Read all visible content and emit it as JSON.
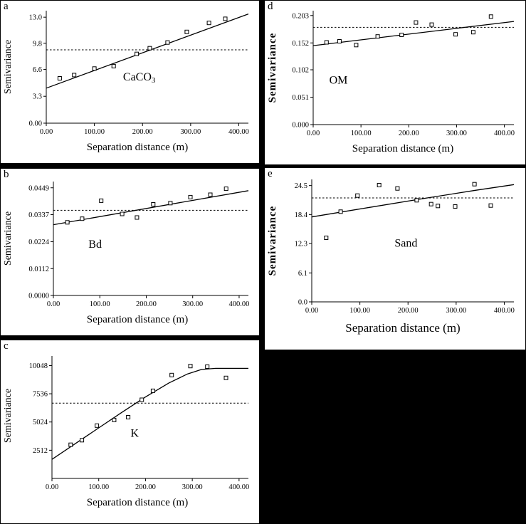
{
  "colors": {
    "background": "#000000",
    "panel": "#ffffff",
    "ink": "#000000"
  },
  "chart_data": [
    {
      "id": "a",
      "type": "scatter",
      "letter": "a",
      "series_label": "CaCO3",
      "label_main": "CaCO",
      "label_sub": "3",
      "xlabel": "Separation distance (m)",
      "ylabel": "Semivariance",
      "xlim": [
        0,
        420
      ],
      "ylim": [
        0,
        13.8
      ],
      "x_ticks": {
        "values": [
          0,
          100,
          200,
          300,
          400
        ],
        "labels": [
          "0.00",
          "100.00",
          "200.00",
          "300.00",
          "400.00"
        ]
      },
      "y_ticks": {
        "values": [
          0,
          3.3,
          6.6,
          9.8,
          13.0
        ],
        "labels": [
          "0.00",
          "3.3",
          "6.6",
          "9.8",
          "13.0"
        ]
      },
      "points": [
        [
          28,
          5.5
        ],
        [
          58,
          5.9
        ],
        [
          100,
          6.7
        ],
        [
          140,
          7.0
        ],
        [
          188,
          8.5
        ],
        [
          215,
          9.2
        ],
        [
          252,
          9.9
        ],
        [
          292,
          11.2
        ],
        [
          338,
          12.3
        ],
        [
          372,
          12.8
        ]
      ],
      "model_line": [
        [
          0,
          4.3
        ],
        [
          420,
          13.4
        ]
      ],
      "sill": 9.0,
      "label_pos": [
        0.38,
        0.62
      ],
      "legend": "none",
      "grid": false
    },
    {
      "id": "b",
      "type": "scatter",
      "letter": "b",
      "series_label": "Bd",
      "label_main": "Bd",
      "label_sub": "",
      "xlabel": "Separation distance (m)",
      "ylabel": "Semivariance",
      "xlim": [
        0,
        420
      ],
      "ylim": [
        0,
        0.0475
      ],
      "x_ticks": {
        "values": [
          0,
          100,
          200,
          300,
          400
        ],
        "labels": [
          "0.00",
          "100.00",
          "200.00",
          "300.00",
          "400.00"
        ]
      },
      "y_ticks": {
        "values": [
          0,
          0.0112,
          0.0224,
          0.0337,
          0.0449
        ],
        "labels": [
          "0.0000",
          "0.0112",
          "0.0224",
          "0.0337",
          "0.0449"
        ]
      },
      "points": [
        [
          30,
          0.0305
        ],
        [
          62,
          0.032
        ],
        [
          103,
          0.0395
        ],
        [
          148,
          0.034
        ],
        [
          180,
          0.0325
        ],
        [
          215,
          0.038
        ],
        [
          252,
          0.0385
        ],
        [
          295,
          0.041
        ],
        [
          338,
          0.042
        ],
        [
          372,
          0.0445
        ]
      ],
      "model_line": [
        [
          0,
          0.0295
        ],
        [
          420,
          0.0437
        ]
      ],
      "sill": 0.0355,
      "label_pos": [
        0.18,
        0.58
      ],
      "legend": "none",
      "grid": false
    },
    {
      "id": "c",
      "type": "scatter",
      "letter": "c",
      "series_label": "K",
      "label_main": "K",
      "label_sub": "",
      "xlabel": "Separation distance (m)",
      "ylabel": "Semivariance",
      "xlim": [
        0,
        420
      ],
      "ylim": [
        0,
        10900
      ],
      "x_ticks": {
        "values": [
          0,
          100,
          200,
          300,
          400
        ],
        "labels": [
          "0.00",
          "100.00",
          "200.00",
          "300.00",
          "400.00"
        ]
      },
      "y_ticks": {
        "values": [
          2512,
          5024,
          7536,
          10048
        ],
        "labels": [
          "2512",
          "5024",
          "7536",
          "10048"
        ]
      },
      "points": [
        [
          40,
          3000
        ],
        [
          64,
          3400
        ],
        [
          96,
          4700
        ],
        [
          133,
          5200
        ],
        [
          163,
          5450
        ],
        [
          192,
          7000
        ],
        [
          216,
          7800
        ],
        [
          256,
          9200
        ],
        [
          296,
          10000
        ],
        [
          332,
          9950
        ],
        [
          372,
          8950
        ]
      ],
      "model_line": [
        [
          0,
          1700
        ],
        [
          50,
          3100
        ],
        [
          100,
          4500
        ],
        [
          150,
          5900
        ],
        [
          200,
          7250
        ],
        [
          250,
          8500
        ],
        [
          290,
          9300
        ],
        [
          320,
          9700
        ],
        [
          350,
          9800
        ],
        [
          420,
          9800
        ]
      ],
      "sill": 6700,
      "label_pos": [
        0.4,
        0.66
      ],
      "legend": "none",
      "grid": false
    },
    {
      "id": "d",
      "type": "scatter",
      "letter": "d",
      "series_label": "OM",
      "label_main": "OM",
      "label_sub": "",
      "xlabel": "Separation distance (m)",
      "ylabel": "Semivariance",
      "xlim": [
        0,
        420
      ],
      "ylim": [
        0,
        0.212
      ],
      "x_ticks": {
        "values": [
          0,
          100,
          200,
          300,
          400
        ],
        "labels": [
          "0.00",
          "100.00",
          "200.00",
          "300.00",
          "400.00"
        ]
      },
      "y_ticks": {
        "values": [
          0,
          0.051,
          0.102,
          0.152,
          0.203
        ],
        "labels": [
          "0.000",
          "0.051",
          "0.102",
          "0.152",
          "0.203"
        ]
      },
      "points": [
        [
          28,
          0.153
        ],
        [
          55,
          0.155
        ],
        [
          90,
          0.148
        ],
        [
          135,
          0.164
        ],
        [
          185,
          0.167
        ],
        [
          215,
          0.19
        ],
        [
          248,
          0.186
        ],
        [
          298,
          0.168
        ],
        [
          335,
          0.172
        ],
        [
          372,
          0.201
        ]
      ],
      "model_line": [
        [
          0,
          0.147
        ],
        [
          420,
          0.192
        ]
      ],
      "sill": 0.181,
      "label_pos": [
        0.08,
        0.64
      ],
      "legend": "none",
      "grid": false
    },
    {
      "id": "e",
      "type": "scatter",
      "letter": "e",
      "series_label": "Sand",
      "label_main": "Sand",
      "label_sub": "",
      "xlabel": "Separation distance (m)",
      "ylabel": "Semivariance",
      "xlim": [
        0,
        420
      ],
      "ylim": [
        0,
        25.8
      ],
      "x_ticks": {
        "values": [
          0,
          100,
          200,
          300,
          400
        ],
        "labels": [
          "0.00",
          "100.00",
          "200.00",
          "300.00",
          "400.00"
        ]
      },
      "y_ticks": {
        "values": [
          0,
          6.1,
          12.3,
          18.4,
          24.5
        ],
        "labels": [
          "0.0",
          "6.1",
          "12.3",
          "18.4",
          "24.5"
        ]
      },
      "points": [
        [
          30,
          13.5
        ],
        [
          60,
          19.0
        ],
        [
          95,
          22.4
        ],
        [
          140,
          24.6
        ],
        [
          178,
          23.9
        ],
        [
          218,
          21.4
        ],
        [
          248,
          20.6
        ],
        [
          262,
          20.2
        ],
        [
          298,
          20.1
        ],
        [
          338,
          24.8
        ],
        [
          372,
          20.3
        ]
      ],
      "model_line": [
        [
          0,
          17.9
        ],
        [
          120,
          19.9
        ],
        [
          240,
          21.9
        ],
        [
          340,
          23.5
        ],
        [
          420,
          24.7
        ]
      ],
      "sill": 21.9,
      "label_pos": [
        0.41,
        0.55
      ],
      "legend": "none",
      "grid": false
    }
  ]
}
